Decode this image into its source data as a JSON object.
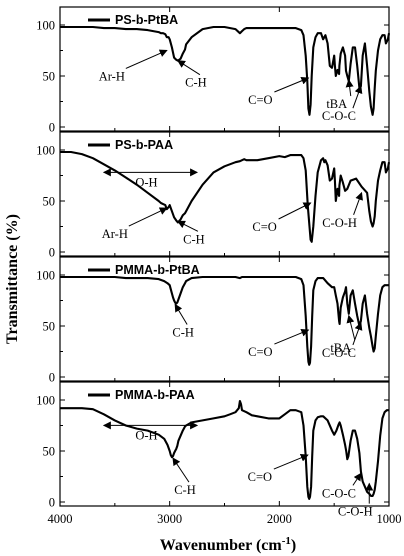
{
  "chart_data": {
    "type": "line",
    "xlabel_main": "Wavenumber (cm",
    "xlabel_sup": "-1",
    "xlabel_close": ")",
    "ylabel": "Transmittance (%)",
    "xlim": [
      4000,
      1000
    ],
    "ylim": [
      0,
      110
    ],
    "x_ticks": [
      4000,
      3000,
      2000,
      1000
    ],
    "y_ticks": [
      0,
      50,
      100
    ],
    "panels": [
      {
        "name": "PS-b-PtBA",
        "x": [
          4000,
          3900,
          3800,
          3700,
          3600,
          3500,
          3400,
          3300,
          3200,
          3150,
          3100,
          3080,
          3060,
          3040,
          3026,
          3010,
          3000,
          2980,
          2960,
          2940,
          2925,
          2900,
          2880,
          2860,
          2850,
          2800,
          2700,
          2600,
          2500,
          2400,
          2360,
          2340,
          2320,
          2300,
          2200,
          2100,
          2000,
          1950,
          1900,
          1850,
          1800,
          1780,
          1760,
          1745,
          1735,
          1725,
          1715,
          1705,
          1690,
          1670,
          1650,
          1620,
          1601,
          1590,
          1580,
          1560,
          1540,
          1520,
          1500,
          1493,
          1485,
          1470,
          1455,
          1452,
          1440,
          1420,
          1400,
          1392,
          1380,
          1367,
          1350,
          1330,
          1310,
          1290,
          1270,
          1256,
          1240,
          1220,
          1200,
          1180,
          1165,
          1150,
          1140,
          1130,
          1120,
          1100,
          1080,
          1060,
          1040,
          1028,
          1010,
          1000
        ],
        "y": [
          98,
          98,
          98,
          98,
          97,
          97,
          96,
          96,
          95,
          94,
          93,
          92,
          92,
          91,
          88,
          88,
          86,
          78,
          68,
          66,
          65,
          67,
          72,
          76,
          81,
          88,
          96,
          98,
          98,
          96,
          92,
          94,
          96,
          97,
          97,
          97,
          97,
          97,
          97,
          97,
          95,
          90,
          70,
          45,
          18,
          12,
          22,
          50,
          78,
          88,
          92,
          92,
          86,
          88,
          90,
          82,
          60,
          58,
          70,
          60,
          50,
          56,
          52,
          60,
          72,
          78,
          70,
          55,
          50,
          45,
          62,
          78,
          78,
          60,
          38,
          40,
          70,
          82,
          60,
          35,
          20,
          12,
          18,
          38,
          55,
          75,
          86,
          90,
          90,
          82,
          86,
          92
        ]
      },
      {
        "name": "PS-b-PAA",
        "x": [
          4000,
          3900,
          3800,
          3700,
          3600,
          3500,
          3400,
          3300,
          3200,
          3100,
          3080,
          3060,
          3040,
          3026,
          3010,
          3000,
          2980,
          2960,
          2940,
          2925,
          2900,
          2880,
          2860,
          2850,
          2800,
          2700,
          2600,
          2500,
          2400,
          2360,
          2340,
          2320,
          2300,
          2200,
          2100,
          2000,
          1950,
          1900,
          1850,
          1800,
          1780,
          1760,
          1740,
          1725,
          1715,
          1705,
          1690,
          1670,
          1650,
          1620,
          1601,
          1590,
          1580,
          1560,
          1540,
          1520,
          1500,
          1493,
          1485,
          1470,
          1455,
          1452,
          1440,
          1420,
          1400,
          1380,
          1350,
          1300,
          1250,
          1200,
          1180,
          1165,
          1150,
          1140,
          1130,
          1120,
          1100,
          1080,
          1060,
          1040,
          1028,
          1010,
          1000
        ],
        "y": [
          98,
          98,
          96,
          92,
          86,
          80,
          73,
          66,
          58,
          50,
          48,
          47,
          46,
          42,
          44,
          46,
          40,
          34,
          31,
          29,
          32,
          36,
          38,
          40,
          50,
          66,
          78,
          84,
          88,
          89,
          90,
          91,
          90,
          90,
          92,
          94,
          93,
          95,
          95,
          95,
          92,
          80,
          45,
          25,
          12,
          10,
          25,
          55,
          78,
          90,
          92,
          88,
          90,
          85,
          70,
          72,
          82,
          70,
          50,
          62,
          55,
          65,
          75,
          68,
          60,
          62,
          70,
          72,
          64,
          58,
          40,
          30,
          25,
          28,
          35,
          50,
          70,
          80,
          88,
          88,
          78,
          82,
          88
        ]
      },
      {
        "name": "PMMA-b-PtBA",
        "x": [
          4000,
          3900,
          3800,
          3700,
          3600,
          3500,
          3400,
          3300,
          3200,
          3100,
          3050,
          3020,
          3000,
          2990,
          2980,
          2970,
          2960,
          2950,
          2940,
          2930,
          2920,
          2900,
          2880,
          2860,
          2850,
          2800,
          2700,
          2600,
          2500,
          2400,
          2360,
          2340,
          2300,
          2200,
          2100,
          2000,
          1950,
          1900,
          1850,
          1800,
          1780,
          1760,
          1745,
          1735,
          1728,
          1720,
          1710,
          1700,
          1690,
          1670,
          1650,
          1620,
          1600,
          1560,
          1520,
          1500,
          1485,
          1470,
          1455,
          1450,
          1440,
          1420,
          1400,
          1392,
          1380,
          1367,
          1350,
          1330,
          1310,
          1290,
          1270,
          1256,
          1240,
          1220,
          1200,
          1180,
          1165,
          1150,
          1140,
          1130,
          1120,
          1100,
          1080,
          1060,
          1040,
          1020,
          1000
        ],
        "y": [
          98,
          98,
          98,
          98,
          98,
          98,
          97,
          97,
          97,
          96,
          94,
          92,
          90,
          86,
          82,
          78,
          75,
          73,
          72,
          73,
          76,
          82,
          88,
          92,
          94,
          97,
          98,
          98,
          98,
          98,
          97,
          98,
          98,
          98,
          98,
          98,
          98,
          98,
          98,
          96,
          90,
          60,
          30,
          15,
          12,
          14,
          30,
          60,
          85,
          94,
          97,
          97,
          97,
          92,
          88,
          88,
          80,
          72,
          55,
          52,
          68,
          78,
          84,
          88,
          72,
          62,
          80,
          85,
          72,
          60,
          50,
          55,
          72,
          80,
          62,
          48,
          40,
          30,
          25,
          28,
          40,
          62,
          80,
          88,
          90,
          90,
          90
        ]
      },
      {
        "name": "PMMA-b-PAA",
        "x": [
          4000,
          3900,
          3800,
          3700,
          3600,
          3500,
          3400,
          3300,
          3200,
          3100,
          3050,
          3020,
          3000,
          2990,
          2980,
          2970,
          2960,
          2950,
          2940,
          2930,
          2920,
          2900,
          2880,
          2860,
          2850,
          2800,
          2700,
          2600,
          2500,
          2450,
          2400,
          2370,
          2360,
          2350,
          2340,
          2300,
          2250,
          2200,
          2100,
          2000,
          1950,
          1900,
          1850,
          1800,
          1780,
          1760,
          1745,
          1735,
          1728,
          1720,
          1710,
          1700,
          1690,
          1670,
          1650,
          1620,
          1600,
          1560,
          1520,
          1500,
          1480,
          1460,
          1450,
          1440,
          1420,
          1400,
          1390,
          1380,
          1370,
          1350,
          1330,
          1310,
          1290,
          1270,
          1256,
          1240,
          1220,
          1200,
          1180,
          1165,
          1150,
          1140,
          1130,
          1120,
          1100,
          1080,
          1060,
          1040,
          1020,
          1000
        ],
        "y": [
          92,
          92,
          92,
          91,
          86,
          80,
          75,
          72,
          70,
          66,
          62,
          56,
          50,
          46,
          44,
          45,
          48,
          50,
          52,
          55,
          60,
          65,
          70,
          74,
          75,
          78,
          80,
          82,
          84,
          86,
          88,
          92,
          99,
          96,
          90,
          88,
          85,
          84,
          82,
          82,
          86,
          90,
          90,
          88,
          75,
          45,
          15,
          5,
          3,
          5,
          15,
          45,
          70,
          80,
          83,
          84,
          84,
          80,
          70,
          66,
          70,
          76,
          78,
          75,
          66,
          56,
          50,
          42,
          45,
          60,
          70,
          70,
          62,
          48,
          30,
          20,
          15,
          10,
          8,
          6,
          6,
          8,
          12,
          20,
          40,
          65,
          82,
          88,
          90,
          90
        ]
      }
    ],
    "annotations": [
      {
        "panel": 0,
        "text": "Ar-H",
        "x": 3026,
        "y": 77
      },
      {
        "panel": 0,
        "text": "C-H",
        "x": 2925,
        "y": 67
      },
      {
        "panel": 0,
        "text": "C=O",
        "x": 1735,
        "y": 50
      },
      {
        "panel": 0,
        "text": "tBA",
        "x": 1367,
        "y": 48
      },
      {
        "panel": 0,
        "text": "C-O-C",
        "x": 1256,
        "y": 42
      },
      {
        "panel": 1,
        "text": "O-H",
        "x": 3400,
        "y": 82
      },
      {
        "panel": 1,
        "text": "Ar-H",
        "x": 3026,
        "y": 45
      },
      {
        "panel": 1,
        "text": "C-H",
        "x": 2925,
        "y": 32
      },
      {
        "panel": 1,
        "text": "C=O",
        "x": 1715,
        "y": 50
      },
      {
        "panel": 1,
        "text": "C-O-H",
        "x": 1250,
        "y": 60
      },
      {
        "panel": 2,
        "text": "C-H",
        "x": 2950,
        "y": 73
      },
      {
        "panel": 2,
        "text": "C=O",
        "x": 1735,
        "y": 48
      },
      {
        "panel": 2,
        "text": "tBA",
        "x": 1367,
        "y": 62
      },
      {
        "panel": 2,
        "text": "C-O-C",
        "x": 1256,
        "y": 55
      },
      {
        "panel": 3,
        "text": "O-H",
        "x": 3400,
        "y": 79
      },
      {
        "panel": 3,
        "text": "C-H",
        "x": 2970,
        "y": 45
      },
      {
        "panel": 3,
        "text": "C=O",
        "x": 1740,
        "y": 48
      },
      {
        "panel": 3,
        "text": "C-O-C",
        "x": 1256,
        "y": 30
      },
      {
        "panel": 3,
        "text": "C-O-H",
        "x": 1180,
        "y": 20
      }
    ]
  }
}
